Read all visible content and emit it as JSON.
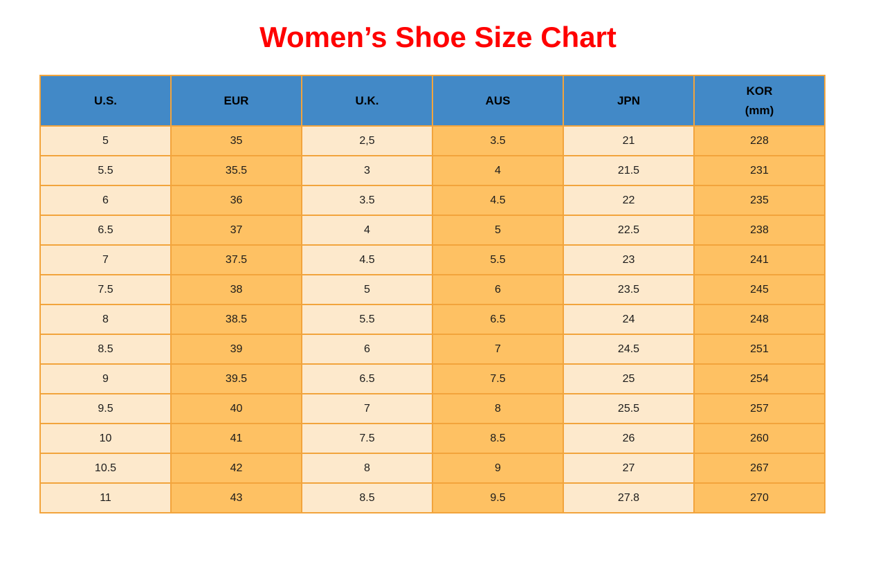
{
  "colors": {
    "title": "#ff0000",
    "header_bg": "#4289c7",
    "header_text": "#000000",
    "cell_light": "#fde9cc",
    "cell_orange": "#fec163",
    "border": "#f2a43c",
    "cell_text": "#1b1b1b",
    "background": "#ffffff"
  },
  "chart_data": {
    "type": "table",
    "title": "Women’s Shoe Size Chart",
    "columns": [
      {
        "label": "U.S.",
        "sublabel": "",
        "shade": "light"
      },
      {
        "label": "EUR",
        "sublabel": "",
        "shade": "orange"
      },
      {
        "label": "U.K.",
        "sublabel": "",
        "shade": "light"
      },
      {
        "label": "AUS",
        "sublabel": "",
        "shade": "orange"
      },
      {
        "label": "JPN",
        "sublabel": "",
        "shade": "light"
      },
      {
        "label": "KOR",
        "sublabel": "(mm)",
        "shade": "orange"
      }
    ],
    "rows": [
      [
        "5",
        "35",
        "2,5",
        "3.5",
        "21",
        "228"
      ],
      [
        "5.5",
        "35.5",
        "3",
        "4",
        "21.5",
        "231"
      ],
      [
        "6",
        "36",
        "3.5",
        "4.5",
        "22",
        "235"
      ],
      [
        "6.5",
        "37",
        "4",
        "5",
        "22.5",
        "238"
      ],
      [
        "7",
        "37.5",
        "4.5",
        "5.5",
        "23",
        "241"
      ],
      [
        "7.5",
        "38",
        "5",
        "6",
        "23.5",
        "245"
      ],
      [
        "8",
        "38.5",
        "5.5",
        "6.5",
        "24",
        "248"
      ],
      [
        "8.5",
        "39",
        "6",
        "7",
        "24.5",
        "251"
      ],
      [
        "9",
        "39.5",
        "6.5",
        "7.5",
        "25",
        "254"
      ],
      [
        "9.5",
        "40",
        "7",
        "8",
        "25.5",
        "257"
      ],
      [
        "10",
        "41",
        "7.5",
        "8.5",
        "26",
        "260"
      ],
      [
        "10.5",
        "42",
        "8",
        "9",
        "27",
        "267"
      ],
      [
        "11",
        "43",
        "8.5",
        "9.5",
        "27.8",
        "270"
      ]
    ]
  }
}
